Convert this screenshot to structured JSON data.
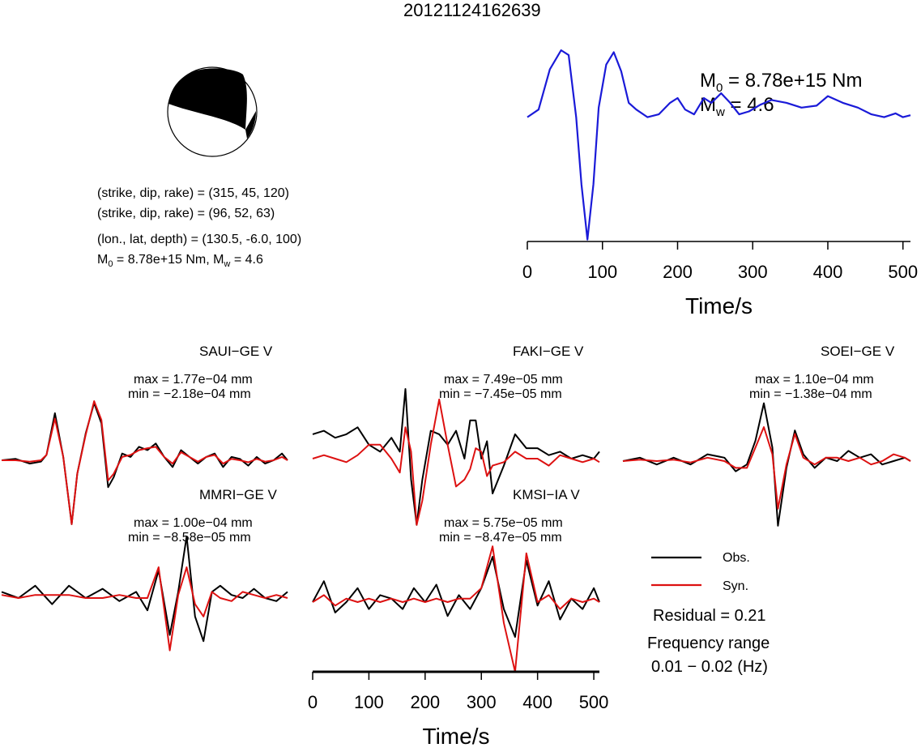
{
  "title": "20121124162639",
  "mechanism": {
    "line1": "(strike, dip, rake) = (315, 45, 120)",
    "line2": "(strike, dip, rake) = (96, 52, 63)",
    "line3": "(lon., lat, depth) = (130.5, -6.0, 100)",
    "line4_m0": "8.78e+15 Nm",
    "line4_mw": "4.6",
    "m_sym": "M",
    "sub0": "0",
    "subw": "w"
  },
  "moment_panel": {
    "m0_value": "8.78e+15 Nm",
    "mw_value": "4.6"
  },
  "legend": {
    "obs": "Obs.",
    "syn": "Syn.",
    "obs_color": "#000000",
    "syn_color": "#dd1111",
    "residual": "Residual = 0.21",
    "freq_label": "Frequency range",
    "freq_value": "0.01 − 0.02 (Hz)"
  },
  "chart_data": [
    {
      "type": "line",
      "name": "source time function",
      "xlabel": "Time/s",
      "ylabel": "",
      "xlim": [
        0,
        510
      ],
      "xticks": [
        "0",
        "100",
        "200",
        "300",
        "400",
        "500"
      ],
      "color": "#1a1ad8",
      "series": [
        {
          "x": [
            0,
            15,
            30,
            45,
            55,
            65,
            72,
            80,
            88,
            95,
            105,
            115,
            125,
            135,
            145,
            160,
            175,
            190,
            200,
            210,
            222,
            235,
            245,
            258,
            270,
            282,
            295,
            310,
            325,
            345,
            365,
            385,
            400,
            420,
            440,
            458,
            475,
            490,
            500,
            510
          ],
          "y": [
            0.3,
            0.38,
            0.8,
            1.0,
            0.95,
            0.3,
            -0.4,
            -0.98,
            -0.4,
            0.4,
            0.85,
            0.98,
            0.78,
            0.45,
            0.38,
            0.3,
            0.33,
            0.45,
            0.5,
            0.38,
            0.33,
            0.5,
            0.45,
            0.55,
            0.45,
            0.33,
            0.36,
            0.43,
            0.48,
            0.45,
            0.4,
            0.42,
            0.52,
            0.45,
            0.4,
            0.33,
            0.3,
            0.34,
            0.3,
            0.32
          ]
        }
      ]
    },
    {
      "type": "line",
      "station": "SAUI−GE V",
      "max": "max = 1.77e−04 mm",
      "min": "min = −2.18e−04 mm",
      "xlim": [
        0,
        510
      ],
      "series": [
        {
          "name": "Obs.",
          "x": [
            0,
            25,
            50,
            70,
            80,
            95,
            110,
            125,
            135,
            150,
            165,
            178,
            190,
            200,
            215,
            230,
            245,
            260,
            275,
            290,
            305,
            320,
            335,
            350,
            365,
            380,
            395,
            410,
            425,
            440,
            455,
            470,
            485,
            500,
            510
          ],
          "y": [
            0.0,
            0.02,
            -0.05,
            -0.02,
            0.08,
            0.7,
            0.05,
            -0.95,
            -0.2,
            0.4,
            0.85,
            0.55,
            -0.4,
            -0.25,
            0.1,
            0.05,
            0.2,
            0.15,
            0.25,
            0.05,
            -0.1,
            0.15,
            0.05,
            -0.05,
            0.05,
            0.1,
            -0.1,
            0.05,
            0.02,
            -0.08,
            0.05,
            -0.05,
            0.0,
            0.1,
            0.0
          ]
        },
        {
          "name": "Syn.",
          "x": [
            0,
            25,
            50,
            70,
            80,
            95,
            110,
            125,
            135,
            150,
            165,
            178,
            190,
            200,
            215,
            230,
            245,
            260,
            275,
            290,
            305,
            320,
            335,
            350,
            365,
            380,
            395,
            410,
            425,
            440,
            455,
            470,
            485,
            500,
            510
          ],
          "y": [
            0.0,
            0.0,
            -0.02,
            0.0,
            0.08,
            0.62,
            0.05,
            -0.95,
            -0.2,
            0.38,
            0.88,
            0.6,
            -0.3,
            -0.2,
            0.05,
            0.08,
            0.15,
            0.18,
            0.2,
            0.05,
            -0.05,
            0.12,
            0.05,
            -0.02,
            0.05,
            0.08,
            -0.05,
            0.02,
            0.0,
            -0.03,
            0.02,
            -0.02,
            0.0,
            0.05,
            0.0
          ]
        }
      ]
    },
    {
      "type": "line",
      "station": "FAKI−GE V",
      "max": "max = 7.49e−05 mm",
      "min": "min = −7.45e−05 mm",
      "xlim": [
        0,
        510
      ],
      "series": [
        {
          "name": "Obs.",
          "x": [
            0,
            20,
            40,
            60,
            80,
            100,
            120,
            140,
            155,
            165,
            175,
            185,
            195,
            210,
            225,
            240,
            255,
            270,
            280,
            290,
            300,
            310,
            320,
            340,
            360,
            380,
            400,
            420,
            440,
            460,
            480,
            500,
            510
          ],
          "y": [
            0.35,
            0.4,
            0.3,
            0.35,
            0.45,
            0.2,
            0.1,
            0.3,
            0.1,
            1.0,
            -0.3,
            -0.95,
            -0.3,
            0.4,
            0.35,
            0.2,
            0.4,
            0.0,
            0.55,
            0.55,
            0.0,
            0.25,
            -0.5,
            -0.1,
            0.35,
            0.15,
            0.15,
            0.05,
            0.1,
            0.0,
            0.05,
            0.0,
            0.1
          ]
        },
        {
          "name": "Syn.",
          "x": [
            0,
            20,
            40,
            60,
            80,
            100,
            120,
            140,
            155,
            165,
            175,
            185,
            195,
            210,
            225,
            240,
            255,
            270,
            280,
            290,
            300,
            310,
            320,
            340,
            360,
            380,
            400,
            420,
            440,
            460,
            480,
            500,
            510
          ],
          "y": [
            0.0,
            0.05,
            0.0,
            -0.05,
            0.05,
            0.2,
            0.2,
            0.0,
            -0.2,
            0.45,
            0.1,
            -0.95,
            -0.6,
            0.2,
            0.85,
            0.2,
            -0.4,
            -0.3,
            -0.15,
            0.15,
            0.1,
            -0.25,
            -0.1,
            -0.05,
            0.1,
            0.0,
            0.0,
            -0.1,
            0.05,
            0.0,
            -0.05,
            0.0,
            -0.05
          ]
        }
      ]
    },
    {
      "type": "line",
      "station": "SOEI−GE V",
      "max": "max = 1.10e−04 mm",
      "min": "min = −1.38e−04 mm",
      "xlim": [
        0,
        510
      ],
      "series": [
        {
          "name": "Obs.",
          "x": [
            0,
            30,
            60,
            90,
            120,
            150,
            180,
            200,
            220,
            235,
            250,
            265,
            275,
            290,
            305,
            320,
            340,
            360,
            380,
            400,
            420,
            440,
            460,
            480,
            500,
            510
          ],
          "y": [
            0.0,
            0.05,
            -0.05,
            0.05,
            -0.05,
            0.1,
            0.05,
            -0.15,
            -0.05,
            0.3,
            0.85,
            0.2,
            -0.95,
            -0.1,
            0.45,
            0.1,
            -0.1,
            0.05,
            0.0,
            0.15,
            0.05,
            0.1,
            -0.05,
            0.0,
            0.05,
            0.0
          ]
        },
        {
          "name": "Syn.",
          "x": [
            0,
            30,
            60,
            90,
            120,
            150,
            180,
            200,
            220,
            235,
            250,
            265,
            275,
            290,
            305,
            320,
            340,
            360,
            380,
            400,
            420,
            440,
            460,
            480,
            500,
            510
          ],
          "y": [
            0.0,
            0.02,
            0.0,
            0.02,
            -0.02,
            0.05,
            0.0,
            -0.1,
            -0.1,
            0.2,
            0.5,
            0.1,
            -0.7,
            -0.05,
            0.4,
            0.05,
            -0.05,
            0.05,
            0.05,
            0.0,
            0.05,
            -0.05,
            0.0,
            0.1,
            0.05,
            0.0
          ]
        }
      ]
    },
    {
      "type": "line",
      "station": "MMRI−GE V",
      "max": "max = 1.00e−04 mm",
      "min": "min = −8.58e−05 mm",
      "xlim": [
        0,
        510
      ],
      "series": [
        {
          "name": "Obs.",
          "x": [
            0,
            30,
            60,
            90,
            120,
            150,
            180,
            210,
            240,
            260,
            280,
            300,
            315,
            330,
            345,
            360,
            375,
            390,
            410,
            430,
            450,
            470,
            490,
            510
          ],
          "y": [
            0.1,
            0.0,
            0.2,
            -0.1,
            0.2,
            0.0,
            0.15,
            -0.05,
            0.1,
            -0.2,
            0.45,
            -0.6,
            0.1,
            1.0,
            -0.3,
            -0.7,
            0.1,
            0.2,
            0.05,
            0.0,
            0.15,
            0.0,
            -0.05,
            0.1
          ]
        },
        {
          "name": "Syn.",
          "x": [
            0,
            30,
            60,
            90,
            120,
            150,
            180,
            210,
            240,
            260,
            280,
            300,
            315,
            330,
            345,
            360,
            375,
            390,
            410,
            430,
            450,
            470,
            490,
            510
          ],
          "y": [
            0.05,
            0.0,
            0.05,
            0.05,
            0.05,
            0.0,
            0.0,
            0.05,
            0.0,
            0.0,
            0.5,
            -0.85,
            0.05,
            0.5,
            -0.1,
            -0.3,
            0.1,
            0.0,
            -0.05,
            0.1,
            0.05,
            0.0,
            0.05,
            0.0
          ]
        }
      ]
    },
    {
      "type": "line",
      "station": "KMSI−IA V",
      "max": "max = 5.75e−05 mm",
      "min": "min = −8.47e−05 mm",
      "xlabel": "Time/s",
      "xticks": [
        "0",
        "100",
        "200",
        "300",
        "400",
        "500"
      ],
      "xlim": [
        0,
        510
      ],
      "series": [
        {
          "name": "Obs.",
          "x": [
            0,
            20,
            40,
            60,
            80,
            100,
            120,
            140,
            160,
            180,
            200,
            220,
            240,
            260,
            280,
            300,
            320,
            340,
            360,
            380,
            400,
            420,
            440,
            460,
            480,
            500,
            510
          ],
          "y": [
            0.0,
            0.3,
            -0.15,
            0.0,
            0.2,
            -0.1,
            0.1,
            0.05,
            -0.1,
            0.2,
            0.0,
            0.25,
            -0.2,
            0.1,
            -0.1,
            0.2,
            0.65,
            -0.1,
            -0.5,
            0.6,
            -0.05,
            0.3,
            -0.25,
            0.05,
            -0.1,
            0.2,
            0.0
          ]
        },
        {
          "name": "Syn.",
          "x": [
            0,
            20,
            40,
            60,
            80,
            100,
            120,
            140,
            160,
            180,
            200,
            220,
            240,
            260,
            280,
            300,
            320,
            340,
            360,
            380,
            400,
            420,
            440,
            460,
            480,
            500,
            510
          ],
          "y": [
            0.0,
            0.1,
            -0.05,
            0.05,
            0.0,
            0.05,
            0.0,
            0.05,
            0.0,
            0.05,
            0.0,
            0.05,
            0.0,
            0.05,
            0.05,
            0.2,
            0.8,
            -0.3,
            -1.0,
            0.7,
            0.0,
            0.1,
            -0.1,
            0.05,
            0.0,
            0.05,
            0.0
          ]
        }
      ]
    }
  ]
}
